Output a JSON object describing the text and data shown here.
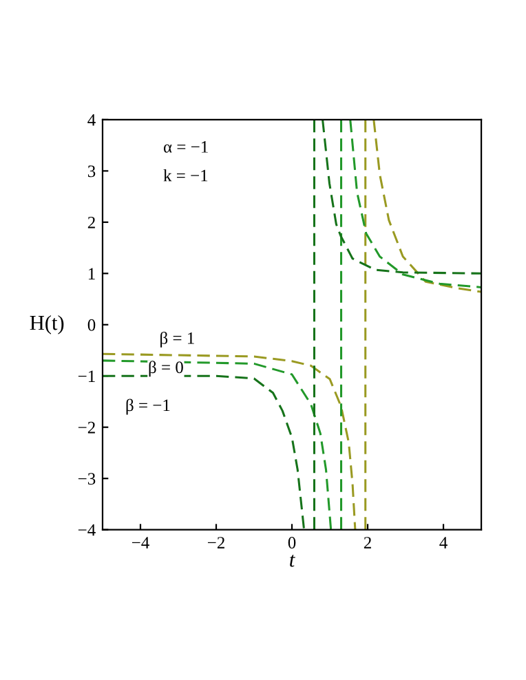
{
  "chart_data": {
    "type": "line",
    "xlabel": "t",
    "ylabel": "H(t)",
    "xlim": [
      -5,
      5
    ],
    "ylim": [
      -4,
      4
    ],
    "xticks": [
      -4,
      -2,
      0,
      2,
      4
    ],
    "yticks": [
      -4,
      -3,
      -2,
      -1,
      0,
      1,
      2,
      3,
      4
    ],
    "grid": false,
    "marker": "none",
    "line_style": "dashed",
    "series": [
      {
        "name": "β = 1",
        "color": "#9a9a22",
        "x": [
          -5,
          -1,
          0,
          0.5,
          1,
          1.3,
          1.5,
          1.6,
          1.67,
          null,
          1.94,
          1.94,
          null,
          2.16,
          2.32,
          2.56,
          2.93,
          3.53,
          4.38,
          5
        ],
        "values": [
          -0.57,
          -0.62,
          -0.71,
          -0.8,
          -1.06,
          -1.6,
          -2.3,
          -3.1,
          -4,
          null,
          -4,
          4,
          null,
          4,
          2.93,
          2.04,
          1.33,
          0.84,
          0.71,
          0.64
        ]
      },
      {
        "name": "β = 0",
        "color": "#22992a",
        "x": [
          -5,
          -1,
          0,
          0.5,
          0.75,
          0.9,
          1.03,
          null,
          1.3,
          1.3,
          null,
          1.54,
          1.72,
          1.96,
          2.32,
          2.93,
          3.9,
          5
        ],
        "values": [
          -0.7,
          -0.76,
          -0.97,
          -1.55,
          -2.12,
          -2.83,
          -4,
          null,
          -4,
          4,
          null,
          4,
          2.58,
          1.78,
          1.33,
          0.98,
          0.8,
          0.73
        ]
      },
      {
        "name": "β = −1",
        "color": "#16731a",
        "x": [
          -5,
          -2,
          -1,
          -0.5,
          -0.25,
          0,
          0.15,
          0.32,
          null,
          0.59,
          0.59,
          null,
          0.81,
          0.99,
          1.17,
          1.29,
          1.6,
          2.2,
          2.93,
          5
        ],
        "values": [
          -1,
          -1,
          -1.05,
          -1.33,
          -1.68,
          -2.2,
          -2.83,
          -4,
          null,
          -4,
          4,
          null,
          4,
          2.76,
          1.96,
          1.73,
          1.29,
          1.07,
          1.02,
          1
        ]
      }
    ],
    "annotations": [
      "α = −1",
      "k = −1"
    ]
  }
}
